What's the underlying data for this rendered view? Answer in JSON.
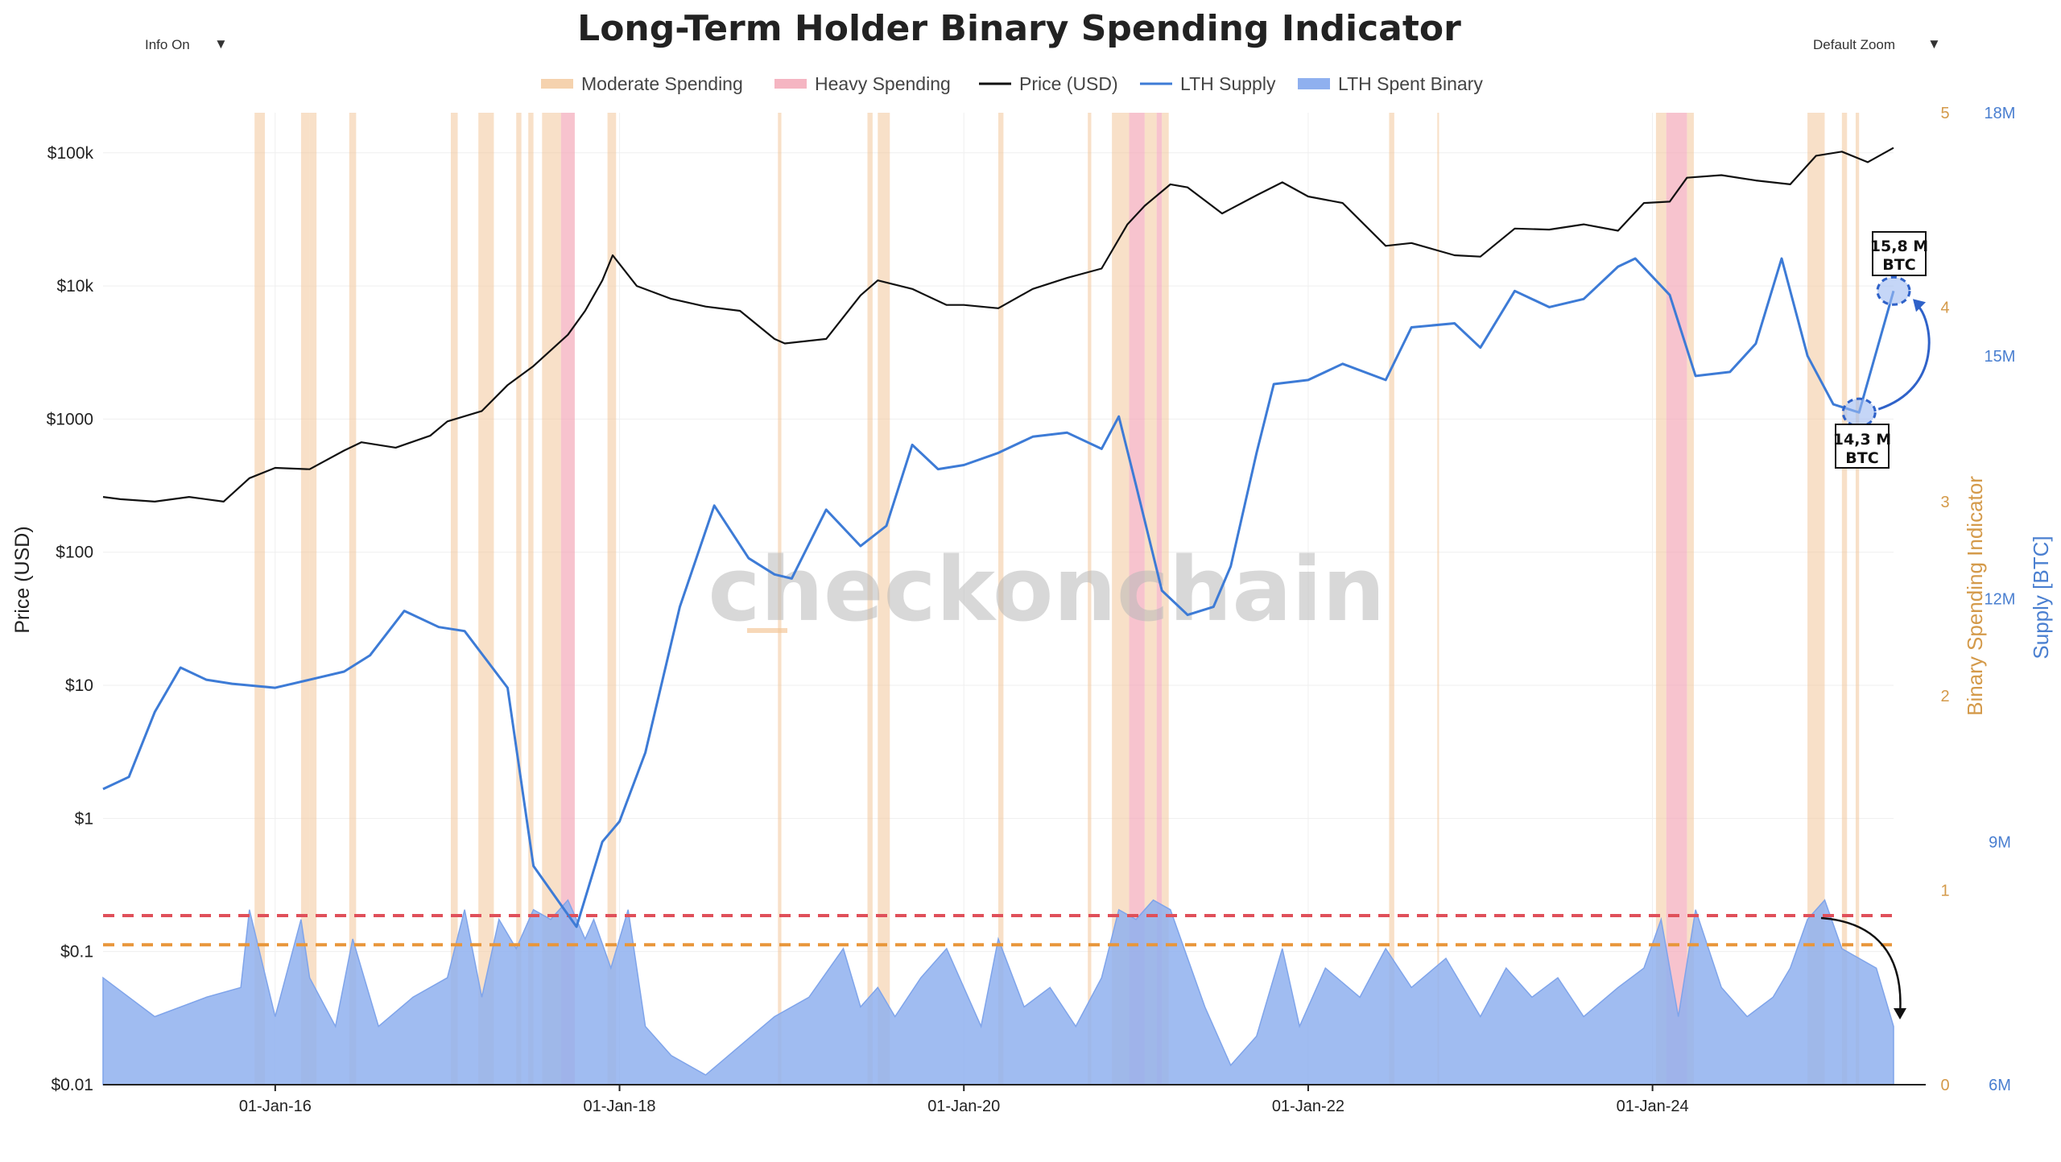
{
  "controls": {
    "info_label": "Info On",
    "zoom_label": "Default Zoom",
    "dropdown_glyph": "▼"
  },
  "watermark": "checkonchain",
  "annotations": {
    "low_line1": "14,3 M",
    "low_line2": "BTC",
    "high_line1": "15,8 M",
    "high_line2": "BTC"
  },
  "chart_data": {
    "type": "line",
    "title": "Long-Term Holder Binary Spending Indicator",
    "legend_position": "top-center",
    "grid": true,
    "legend": [
      {
        "name": "Moderate Spending",
        "kind": "band",
        "color": "#f3c79a"
      },
      {
        "name": "Heavy Spending",
        "kind": "band",
        "color": "#f3a3b3"
      },
      {
        "name": "Price (USD)",
        "kind": "line",
        "color": "#111111"
      },
      {
        "name": "LTH Supply",
        "kind": "line",
        "color": "#3d7bd6"
      },
      {
        "name": "LTH Spent Binary",
        "kind": "area",
        "color": "#8fb0ef"
      }
    ],
    "x_axis": {
      "start": 2015.0,
      "end": 2025.4,
      "ticks": [
        {
          "label": "01-Jan-16",
          "value": 2016.0
        },
        {
          "label": "01-Jan-18",
          "value": 2018.0
        },
        {
          "label": "01-Jan-20",
          "value": 2020.0
        },
        {
          "label": "01-Jan-22",
          "value": 2022.0
        },
        {
          "label": "01-Jan-24",
          "value": 2024.0
        }
      ]
    },
    "y_price": {
      "label": "Price (USD)",
      "scale": "log",
      "range": [
        0.01,
        200000
      ],
      "ticks": [
        {
          "label": "$0.01",
          "value": 0.01
        },
        {
          "label": "$0.1",
          "value": 0.1
        },
        {
          "label": "$1",
          "value": 1
        },
        {
          "label": "$10",
          "value": 10
        },
        {
          "label": "$100",
          "value": 100
        },
        {
          "label": "$1000",
          "value": 1000
        },
        {
          "label": "$10k",
          "value": 10000
        },
        {
          "label": "$100k",
          "value": 100000
        }
      ]
    },
    "y_indicator": {
      "label": "Binary Spending Indicator",
      "range": [
        0,
        5
      ],
      "ticks": [
        {
          "label": "0",
          "value": 0
        },
        {
          "label": "1",
          "value": 1
        },
        {
          "label": "2",
          "value": 2
        },
        {
          "label": "3",
          "value": 3
        },
        {
          "label": "4",
          "value": 4
        },
        {
          "label": "5",
          "value": 5
        }
      ],
      "thresholds": [
        {
          "name": "Heavy Spending",
          "value": 0.87,
          "color": "#e0505a"
        },
        {
          "name": "Moderate Spending",
          "value": 0.72,
          "color": "#e8963a"
        }
      ]
    },
    "y_supply": {
      "label": "Supply [BTC]",
      "range": [
        6000000,
        18000000
      ],
      "ticks": [
        {
          "label": "6M",
          "value": 6000000
        },
        {
          "label": "9M",
          "value": 9000000
        },
        {
          "label": "12M",
          "value": 12000000
        },
        {
          "label": "15M",
          "value": 15000000
        },
        {
          "label": "18M",
          "value": 18000000
        }
      ]
    },
    "price_series": {
      "name": "Price (USD)",
      "x": [
        2015.0,
        2015.1,
        2015.3,
        2015.5,
        2015.7,
        2015.85,
        2016.0,
        2016.2,
        2016.4,
        2016.5,
        2016.7,
        2016.9,
        2017.0,
        2017.2,
        2017.35,
        2017.5,
        2017.7,
        2017.8,
        2017.9,
        2017.96,
        2018.1,
        2018.3,
        2018.5,
        2018.7,
        2018.9,
        2018.96,
        2019.2,
        2019.4,
        2019.5,
        2019.7,
        2019.9,
        2020.0,
        2020.2,
        2020.4,
        2020.6,
        2020.8,
        2020.95,
        2021.05,
        2021.2,
        2021.3,
        2021.5,
        2021.7,
        2021.85,
        2022.0,
        2022.2,
        2022.45,
        2022.6,
        2022.85,
        2023.0,
        2023.2,
        2023.4,
        2023.6,
        2023.8,
        2023.95,
        2024.1,
        2024.2,
        2024.4,
        2024.6,
        2024.8,
        2024.95,
        2025.1,
        2025.25,
        2025.4
      ],
      "y": [
        260,
        250,
        240,
        260,
        240,
        360,
        430,
        420,
        580,
        670,
        610,
        750,
        960,
        1150,
        1800,
        2500,
        4300,
        6500,
        11000,
        17000,
        10000,
        8000,
        7000,
        6500,
        4000,
        3700,
        4000,
        8500,
        11000,
        9500,
        7200,
        7200,
        6800,
        9500,
        11500,
        13500,
        29000,
        40000,
        58000,
        55000,
        35000,
        48000,
        60000,
        47000,
        42000,
        20000,
        21000,
        17000,
        16600,
        27000,
        26500,
        29000,
        26000,
        42000,
        43000,
        65000,
        68000,
        62000,
        58000,
        95000,
        102000,
        85000,
        109000
      ]
    },
    "supply_series": {
      "name": "LTH Supply",
      "x": [
        2015.0,
        2015.15,
        2015.3,
        2015.45,
        2015.6,
        2015.75,
        2016.0,
        2016.2,
        2016.4,
        2016.55,
        2016.75,
        2016.95,
        2017.1,
        2017.35,
        2017.5,
        2017.65,
        2017.75,
        2017.9,
        2018.0,
        2018.15,
        2018.35,
        2018.55,
        2018.75,
        2018.9,
        2019.0,
        2019.2,
        2019.4,
        2019.55,
        2019.7,
        2019.85,
        2020.0,
        2020.2,
        2020.4,
        2020.6,
        2020.8,
        2020.9,
        2021.0,
        2021.15,
        2021.3,
        2021.45,
        2021.55,
        2021.7,
        2021.8,
        2022.0,
        2022.2,
        2022.45,
        2022.6,
        2022.85,
        2023.0,
        2023.2,
        2023.4,
        2023.6,
        2023.8,
        2023.9,
        2024.1,
        2024.25,
        2024.45,
        2024.6,
        2024.75,
        2024.9,
        2025.05,
        2025.2,
        2025.4
      ],
      "y": [
        9650000,
        9800000,
        10600000,
        11150000,
        11000000,
        10950000,
        10900000,
        11000000,
        11100000,
        11300000,
        11850000,
        11650000,
        11600000,
        10900000,
        8700000,
        8250000,
        7950000,
        9000000,
        9250000,
        10100000,
        11900000,
        13150000,
        12500000,
        12300000,
        12250000,
        13100000,
        12650000,
        12900000,
        13900000,
        13600000,
        13650000,
        13800000,
        14000000,
        14050000,
        13850000,
        14250000,
        13400000,
        12100000,
        11800000,
        11900000,
        12400000,
        13800000,
        14650000,
        14700000,
        14900000,
        14700000,
        15350000,
        15400000,
        15100000,
        15800000,
        15600000,
        15700000,
        16100000,
        16200000,
        15750000,
        14750000,
        14800000,
        15150000,
        16200000,
        15000000,
        14400000,
        14300000,
        15800000
      ]
    },
    "binary_series": {
      "name": "LTH Spent Binary",
      "x": [
        2015.0,
        2015.3,
        2015.6,
        2015.8,
        2015.85,
        2016.0,
        2016.15,
        2016.2,
        2016.35,
        2016.45,
        2016.6,
        2016.8,
        2017.0,
        2017.1,
        2017.2,
        2017.3,
        2017.4,
        2017.5,
        2017.6,
        2017.7,
        2017.8,
        2017.85,
        2017.95,
        2018.05,
        2018.15,
        2018.3,
        2018.5,
        2018.7,
        2018.9,
        2019.1,
        2019.3,
        2019.4,
        2019.5,
        2019.6,
        2019.75,
        2019.9,
        2020.1,
        2020.2,
        2020.35,
        2020.5,
        2020.65,
        2020.8,
        2020.9,
        2021.0,
        2021.1,
        2021.2,
        2021.3,
        2021.4,
        2021.55,
        2021.7,
        2021.85,
        2021.95,
        2022.1,
        2022.3,
        2022.45,
        2022.6,
        2022.8,
        2023.0,
        2023.15,
        2023.3,
        2023.45,
        2023.6,
        2023.8,
        2023.95,
        2024.05,
        2024.15,
        2024.25,
        2024.4,
        2024.55,
        2024.7,
        2024.8,
        2024.9,
        2025.0,
        2025.1,
        2025.2,
        2025.3,
        2025.4
      ],
      "y": [
        0.55,
        0.35,
        0.45,
        0.5,
        0.9,
        0.35,
        0.85,
        0.55,
        0.3,
        0.75,
        0.3,
        0.45,
        0.55,
        0.9,
        0.45,
        0.85,
        0.7,
        0.9,
        0.85,
        0.95,
        0.75,
        0.85,
        0.6,
        0.9,
        0.3,
        0.15,
        0.05,
        0.2,
        0.35,
        0.45,
        0.7,
        0.4,
        0.5,
        0.35,
        0.55,
        0.7,
        0.3,
        0.75,
        0.4,
        0.5,
        0.3,
        0.55,
        0.9,
        0.85,
        0.95,
        0.9,
        0.65,
        0.4,
        0.1,
        0.25,
        0.7,
        0.3,
        0.6,
        0.45,
        0.7,
        0.5,
        0.65,
        0.35,
        0.6,
        0.45,
        0.55,
        0.35,
        0.5,
        0.6,
        0.85,
        0.35,
        0.9,
        0.5,
        0.35,
        0.45,
        0.6,
        0.85,
        0.95,
        0.7,
        0.65,
        0.6,
        0.3
      ]
    },
    "moderate_bands": [
      {
        "from": 2015.88,
        "to": 2015.94
      },
      {
        "from": 2016.15,
        "to": 2016.2
      },
      {
        "from": 2016.2,
        "to": 2016.24
      },
      {
        "from": 2016.43,
        "to": 2016.47
      },
      {
        "from": 2017.02,
        "to": 2017.06
      },
      {
        "from": 2017.18,
        "to": 2017.27
      },
      {
        "from": 2017.4,
        "to": 2017.43
      },
      {
        "from": 2017.47,
        "to": 2017.5
      },
      {
        "from": 2017.55,
        "to": 2017.6
      },
      {
        "from": 2017.6,
        "to": 2017.66
      },
      {
        "from": 2017.93,
        "to": 2017.98
      },
      {
        "from": 2018.92,
        "to": 2018.94
      },
      {
        "from": 2019.44,
        "to": 2019.47
      },
      {
        "from": 2019.5,
        "to": 2019.57
      },
      {
        "from": 2020.2,
        "to": 2020.23
      },
      {
        "from": 2020.72,
        "to": 2020.74
      },
      {
        "from": 2020.86,
        "to": 2020.96
      },
      {
        "from": 2021.05,
        "to": 2021.12
      },
      {
        "from": 2021.15,
        "to": 2021.19
      },
      {
        "from": 2022.47,
        "to": 2022.5
      },
      {
        "from": 2022.75,
        "to": 2022.76
      },
      {
        "from": 2024.02,
        "to": 2024.08
      },
      {
        "from": 2024.2,
        "to": 2024.24
      },
      {
        "from": 2024.9,
        "to": 2025.0
      },
      {
        "from": 2025.1,
        "to": 2025.13
      },
      {
        "from": 2025.18,
        "to": 2025.2
      }
    ],
    "heavy_bands": [
      {
        "from": 2017.66,
        "to": 2017.74
      },
      {
        "from": 2020.96,
        "to": 2021.05
      },
      {
        "from": 2021.12,
        "to": 2021.15
      },
      {
        "from": 2024.08,
        "to": 2024.2
      }
    ]
  }
}
